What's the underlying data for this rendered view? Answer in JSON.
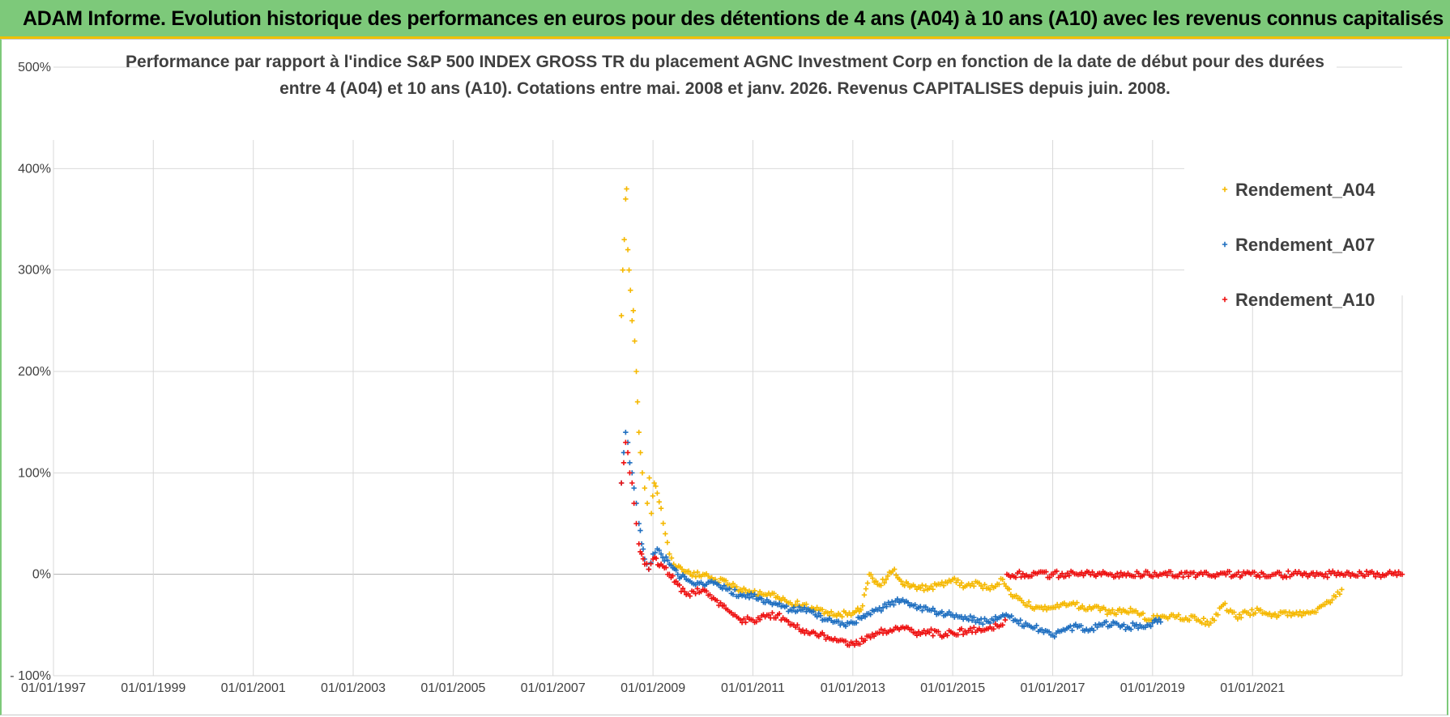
{
  "header": {
    "title": "ADAM Informe. Evolution historique des performances en euros pour des détentions de 4 ans (A04) à 10 ans (A10) avec les revenus connus capitalisés"
  },
  "chart_data": {
    "type": "scatter",
    "title_lines": [
      "Performance par rapport à l'indice S&P 500 INDEX GROSS TR  du placement AGNC Investment Corp en fonction de la date de début pour des durées",
      "entre 4 (A04) et 10 ans (A10).  Cotations entre mai. 2008 et janv. 2026.  Revenus CAPITALISES  depuis juin. 2008."
    ],
    "xlabel": "",
    "ylabel": "",
    "x_ticks": [
      "01/01/1997",
      "01/01/1999",
      "01/01/2001",
      "01/01/2003",
      "01/01/2005",
      "01/01/2007",
      "01/01/2009",
      "01/01/2011",
      "01/01/2013",
      "01/01/2015",
      "01/01/2017",
      "01/01/2019",
      "01/01/2021"
    ],
    "y_ticks": [
      "500%",
      "400%",
      "300%",
      "200%",
      "100%",
      "0%",
      "- 100%"
    ],
    "xlim": [
      "1997-01-01",
      "2023-12-31"
    ],
    "ylim": [
      -100,
      500
    ],
    "grid": true,
    "legend_position": "top-right",
    "marker": "+",
    "series": [
      {
        "name": "Rendement_A04",
        "color": "#f5b800",
        "points": [
          [
            "2008-05-15",
            255
          ],
          [
            "2008-05-25",
            300
          ],
          [
            "2008-06-05",
            330
          ],
          [
            "2008-06-15",
            370
          ],
          [
            "2008-06-22",
            380
          ],
          [
            "2008-07-01",
            320
          ],
          [
            "2008-07-10",
            300
          ],
          [
            "2008-07-20",
            280
          ],
          [
            "2008-08-01",
            250
          ],
          [
            "2008-08-10",
            260
          ],
          [
            "2008-08-20",
            230
          ],
          [
            "2008-09-01",
            200
          ],
          [
            "2008-09-10",
            170
          ],
          [
            "2008-09-20",
            140
          ],
          [
            "2008-10-01",
            120
          ],
          [
            "2008-10-15",
            100
          ],
          [
            "2008-11-01",
            85
          ],
          [
            "2008-11-20",
            70
          ],
          [
            "2008-12-05",
            95
          ],
          [
            "2008-12-20",
            60
          ],
          [
            "2009-01-10",
            90
          ],
          [
            "2009-02-01",
            80
          ],
          [
            "2009-03-01",
            65
          ],
          [
            "2009-04-01",
            40
          ],
          [
            "2009-05-01",
            20
          ],
          [
            "2009-06-01",
            10
          ],
          [
            "2009-08-01",
            5
          ],
          [
            "2009-10-01",
            0
          ],
          [
            "2010-01-01",
            0
          ],
          [
            "2010-04-01",
            -5
          ],
          [
            "2010-07-01",
            -10
          ],
          [
            "2010-10-01",
            -15
          ],
          [
            "2011-01-01",
            -18
          ],
          [
            "2011-04-01",
            -20
          ],
          [
            "2011-07-01",
            -22
          ],
          [
            "2011-10-01",
            -28
          ],
          [
            "2012-01-01",
            -30
          ],
          [
            "2012-04-01",
            -35
          ],
          [
            "2012-07-01",
            -38
          ],
          [
            "2012-10-01",
            -40
          ],
          [
            "2013-01-01",
            -38
          ],
          [
            "2013-03-01",
            -35
          ],
          [
            "2013-05-01",
            0
          ],
          [
            "2013-07-01",
            -10
          ],
          [
            "2013-09-01",
            -5
          ],
          [
            "2013-11-01",
            5
          ],
          [
            "2014-01-01",
            -10
          ],
          [
            "2014-04-01",
            -12
          ],
          [
            "2014-07-01",
            -15
          ],
          [
            "2014-10-01",
            -10
          ],
          [
            "2015-01-01",
            -5
          ],
          [
            "2015-04-01",
            -12
          ],
          [
            "2015-07-01",
            -8
          ],
          [
            "2015-10-01",
            -15
          ],
          [
            "2016-01-01",
            -5
          ],
          [
            "2016-03-01",
            -20
          ],
          [
            "2016-06-01",
            -28
          ],
          [
            "2016-09-01",
            -32
          ],
          [
            "2016-12-01",
            -33
          ],
          [
            "2017-03-01",
            -30
          ],
          [
            "2017-06-01",
            -28
          ],
          [
            "2017-09-01",
            -35
          ],
          [
            "2017-12-01",
            -32
          ],
          [
            "2018-03-01",
            -38
          ],
          [
            "2018-06-01",
            -35
          ],
          [
            "2018-09-01",
            -36
          ],
          [
            "2018-12-01",
            -45
          ],
          [
            "2019-03-01",
            -42
          ],
          [
            "2019-06-01",
            -40
          ],
          [
            "2019-09-01",
            -43
          ],
          [
            "2019-12-01",
            -45
          ],
          [
            "2020-03-01",
            -48
          ],
          [
            "2020-06-01",
            -30
          ],
          [
            "2020-09-01",
            -42
          ],
          [
            "2020-12-01",
            -38
          ],
          [
            "2021-03-01",
            -35
          ],
          [
            "2021-06-01",
            -40
          ],
          [
            "2021-09-01",
            -37
          ],
          [
            "2021-12-01",
            -40
          ],
          [
            "2022-03-01",
            -38
          ],
          [
            "2022-06-01",
            -30
          ],
          [
            "2022-09-01",
            -22
          ],
          [
            "2022-10-15",
            -15
          ]
        ]
      },
      {
        "name": "Rendement_A07",
        "color": "#1f6fc0",
        "points": [
          [
            "2008-05-15",
            90
          ],
          [
            "2008-06-01",
            120
          ],
          [
            "2008-06-15",
            140
          ],
          [
            "2008-07-01",
            130
          ],
          [
            "2008-07-15",
            110
          ],
          [
            "2008-08-01",
            100
          ],
          [
            "2008-08-15",
            85
          ],
          [
            "2008-09-01",
            70
          ],
          [
            "2008-09-20",
            50
          ],
          [
            "2008-10-10",
            30
          ],
          [
            "2008-11-01",
            15
          ],
          [
            "2008-12-01",
            5
          ],
          [
            "2009-01-01",
            20
          ],
          [
            "2009-02-01",
            25
          ],
          [
            "2009-03-01",
            20
          ],
          [
            "2009-05-01",
            10
          ],
          [
            "2009-07-01",
            0
          ],
          [
            "2009-09-01",
            -5
          ],
          [
            "2010-01-01",
            -10
          ],
          [
            "2010-04-01",
            -8
          ],
          [
            "2010-07-01",
            -15
          ],
          [
            "2010-10-01",
            -20
          ],
          [
            "2011-01-01",
            -22
          ],
          [
            "2011-04-01",
            -28
          ],
          [
            "2011-07-01",
            -30
          ],
          [
            "2011-10-01",
            -35
          ],
          [
            "2012-01-01",
            -35
          ],
          [
            "2012-04-01",
            -40
          ],
          [
            "2012-07-01",
            -45
          ],
          [
            "2012-10-01",
            -50
          ],
          [
            "2013-01-01",
            -48
          ],
          [
            "2013-04-01",
            -42
          ],
          [
            "2013-07-01",
            -35
          ],
          [
            "2013-10-01",
            -30
          ],
          [
            "2014-01-01",
            -25
          ],
          [
            "2014-04-01",
            -30
          ],
          [
            "2014-07-01",
            -35
          ],
          [
            "2014-10-01",
            -38
          ],
          [
            "2015-01-01",
            -40
          ],
          [
            "2015-04-01",
            -42
          ],
          [
            "2015-07-01",
            -45
          ],
          [
            "2015-10-01",
            -48
          ],
          [
            "2016-01-01",
            -40
          ],
          [
            "2016-04-01",
            -45
          ],
          [
            "2016-07-01",
            -50
          ],
          [
            "2016-10-01",
            -55
          ],
          [
            "2017-01-01",
            -60
          ],
          [
            "2017-04-01",
            -55
          ],
          [
            "2017-07-01",
            -52
          ],
          [
            "2017-10-01",
            -55
          ],
          [
            "2018-01-01",
            -50
          ],
          [
            "2018-04-01",
            -48
          ],
          [
            "2018-07-01",
            -52
          ],
          [
            "2018-10-01",
            -50
          ],
          [
            "2019-01-01",
            -48
          ],
          [
            "2019-03-01",
            -47
          ]
        ]
      },
      {
        "name": "Rendement_A10",
        "color": "#ee1111",
        "points": [
          [
            "2008-05-15",
            90
          ],
          [
            "2008-06-01",
            110
          ],
          [
            "2008-06-15",
            130
          ],
          [
            "2008-07-01",
            120
          ],
          [
            "2008-07-15",
            100
          ],
          [
            "2008-08-01",
            90
          ],
          [
            "2008-08-15",
            70
          ],
          [
            "2008-09-01",
            50
          ],
          [
            "2008-09-20",
            30
          ],
          [
            "2008-10-10",
            20
          ],
          [
            "2008-11-01",
            10
          ],
          [
            "2008-12-01",
            5
          ],
          [
            "2009-01-01",
            15
          ],
          [
            "2009-03-01",
            10
          ],
          [
            "2009-05-01",
            0
          ],
          [
            "2009-07-01",
            -10
          ],
          [
            "2009-09-01",
            -20
          ],
          [
            "2010-01-01",
            -15
          ],
          [
            "2010-04-01",
            -25
          ],
          [
            "2010-07-01",
            -35
          ],
          [
            "2010-10-01",
            -45
          ],
          [
            "2011-01-01",
            -45
          ],
          [
            "2011-04-01",
            -42
          ],
          [
            "2011-07-01",
            -40
          ],
          [
            "2011-10-01",
            -50
          ],
          [
            "2012-01-01",
            -55
          ],
          [
            "2012-04-01",
            -58
          ],
          [
            "2012-07-01",
            -62
          ],
          [
            "2012-10-01",
            -65
          ],
          [
            "2013-01-01",
            -68
          ],
          [
            "2013-04-01",
            -65
          ],
          [
            "2013-07-01",
            -58
          ],
          [
            "2013-10-01",
            -55
          ],
          [
            "2014-01-01",
            -52
          ],
          [
            "2014-04-01",
            -58
          ],
          [
            "2014-07-01",
            -56
          ],
          [
            "2014-10-01",
            -60
          ],
          [
            "2015-01-01",
            -58
          ],
          [
            "2015-04-01",
            -56
          ],
          [
            "2015-07-01",
            -55
          ],
          [
            "2015-10-01",
            -52
          ],
          [
            "2016-01-01",
            -50
          ],
          [
            "2016-01-20",
            -45
          ],
          [
            "2016-02-01",
            0
          ],
          [
            "2023-12-31",
            0
          ]
        ]
      }
    ]
  }
}
